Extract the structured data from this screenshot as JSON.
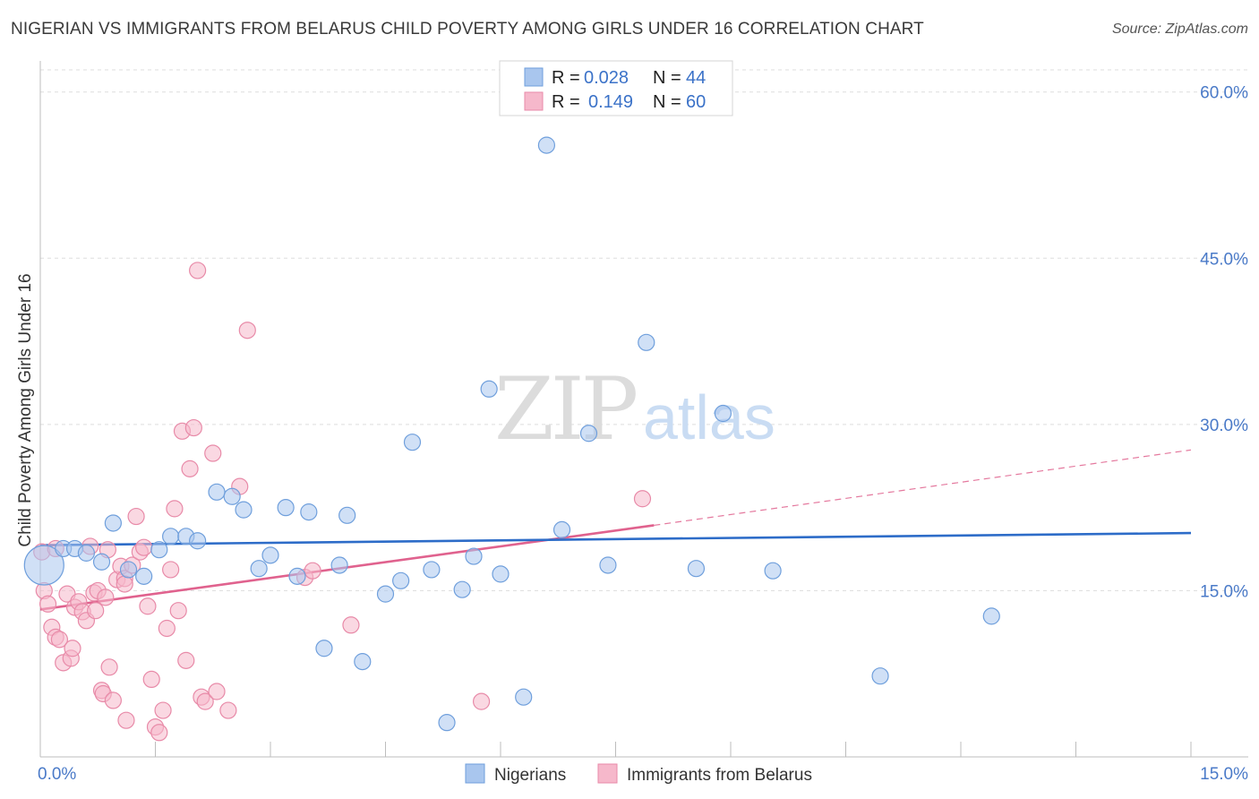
{
  "title": "NIGERIAN VS IMMIGRANTS FROM BELARUS CHILD POVERTY AMONG GIRLS UNDER 16 CORRELATION CHART",
  "source": "Source: ZipAtlas.com",
  "watermark": {
    "part1": "ZIP",
    "part2": "atlas"
  },
  "colors": {
    "blue_fill": "#a9c6ee",
    "blue_stroke": "#6f9fdc",
    "blue_line": "#2d6cc8",
    "pink_fill": "#f6b8cb",
    "pink_stroke": "#e88aa8",
    "pink_line": "#e0628e",
    "grid": "#dddddd",
    "tick_text": "#4a7ac8"
  },
  "top_legend": [
    {
      "r_label": "R = ",
      "r_value": "0.028",
      "n_label": "N = ",
      "n_value": "44"
    },
    {
      "r_label": "R = ",
      "r_value": "0.149",
      "n_label": "N = ",
      "n_value": "60"
    }
  ],
  "bottom_legend": [
    {
      "label": "Nigerians"
    },
    {
      "label": "Immigrants from Belarus"
    }
  ],
  "chart_data": {
    "type": "scatter",
    "title": "NIGERIAN VS IMMIGRANTS FROM BELARUS CHILD POVERTY AMONG GIRLS UNDER 16 CORRELATION CHART",
    "xlabel": "",
    "ylabel": "Child Poverty Among Girls Under 16",
    "xlim": [
      0,
      15
    ],
    "ylim": [
      0,
      62
    ],
    "x_tick_labels": [
      "0.0%",
      "15.0%"
    ],
    "y_ticks": [
      15,
      30,
      45,
      60
    ],
    "y_tick_labels": [
      "15.0%",
      "30.0%",
      "45.0%",
      "60.0%"
    ],
    "grid": true,
    "legend_position": "top-center",
    "series": [
      {
        "name": "Nigerians",
        "R": 0.028,
        "N": 44,
        "trend": {
          "x": [
            0,
            15
          ],
          "y": [
            19.1,
            20.2
          ]
        },
        "points": [
          {
            "x": 0.05,
            "y": 17.3,
            "size": "large"
          },
          {
            "x": 0.3,
            "y": 18.8
          },
          {
            "x": 0.45,
            "y": 18.8
          },
          {
            "x": 0.6,
            "y": 18.4
          },
          {
            "x": 0.8,
            "y": 17.6
          },
          {
            "x": 0.95,
            "y": 21.1
          },
          {
            "x": 1.15,
            "y": 16.9
          },
          {
            "x": 1.35,
            "y": 16.3
          },
          {
            "x": 1.55,
            "y": 18.7
          },
          {
            "x": 1.7,
            "y": 19.9
          },
          {
            "x": 1.9,
            "y": 19.9
          },
          {
            "x": 2.05,
            "y": 19.5
          },
          {
            "x": 2.3,
            "y": 23.9
          },
          {
            "x": 2.5,
            "y": 23.5
          },
          {
            "x": 2.65,
            "y": 22.3
          },
          {
            "x": 2.85,
            "y": 17.0
          },
          {
            "x": 3.0,
            "y": 18.2
          },
          {
            "x": 3.2,
            "y": 22.5
          },
          {
            "x": 3.35,
            "y": 16.3
          },
          {
            "x": 3.5,
            "y": 22.1
          },
          {
            "x": 3.7,
            "y": 9.8
          },
          {
            "x": 3.9,
            "y": 17.3
          },
          {
            "x": 4.0,
            "y": 21.8
          },
          {
            "x": 4.2,
            "y": 8.6
          },
          {
            "x": 4.5,
            "y": 14.7
          },
          {
            "x": 4.7,
            "y": 15.9
          },
          {
            "x": 4.85,
            "y": 28.4
          },
          {
            "x": 5.1,
            "y": 16.9
          },
          {
            "x": 5.3,
            "y": 3.1
          },
          {
            "x": 5.5,
            "y": 15.1
          },
          {
            "x": 5.65,
            "y": 18.1
          },
          {
            "x": 5.85,
            "y": 33.2
          },
          {
            "x": 6.0,
            "y": 16.5
          },
          {
            "x": 6.3,
            "y": 5.4
          },
          {
            "x": 6.6,
            "y": 55.2
          },
          {
            "x": 6.8,
            "y": 20.5
          },
          {
            "x": 7.15,
            "y": 29.2
          },
          {
            "x": 7.4,
            "y": 17.3
          },
          {
            "x": 7.9,
            "y": 37.4
          },
          {
            "x": 8.55,
            "y": 17.0
          },
          {
            "x": 8.9,
            "y": 31.0
          },
          {
            "x": 9.55,
            "y": 16.8
          },
          {
            "x": 10.95,
            "y": 7.3
          },
          {
            "x": 12.4,
            "y": 12.7
          }
        ]
      },
      {
        "name": "Immigrants from Belarus",
        "R": 0.149,
        "N": 60,
        "trend": {
          "x": [
            0,
            8
          ],
          "y": [
            13.3,
            20.9
          ]
        },
        "trend_dashed": {
          "x": [
            8,
            15
          ],
          "y": [
            20.9,
            27.7
          ]
        },
        "points": [
          {
            "x": 0.02,
            "y": 18.5
          },
          {
            "x": 0.05,
            "y": 15.0
          },
          {
            "x": 0.1,
            "y": 13.8
          },
          {
            "x": 0.15,
            "y": 11.7
          },
          {
            "x": 0.2,
            "y": 18.8
          },
          {
            "x": 0.2,
            "y": 10.8
          },
          {
            "x": 0.25,
            "y": 10.6
          },
          {
            "x": 0.3,
            "y": 8.5
          },
          {
            "x": 0.35,
            "y": 14.7
          },
          {
            "x": 0.4,
            "y": 8.9
          },
          {
            "x": 0.42,
            "y": 9.8
          },
          {
            "x": 0.45,
            "y": 13.5
          },
          {
            "x": 0.5,
            "y": 14.0
          },
          {
            "x": 0.55,
            "y": 13.1
          },
          {
            "x": 0.6,
            "y": 12.3
          },
          {
            "x": 0.65,
            "y": 19.0
          },
          {
            "x": 0.7,
            "y": 14.8
          },
          {
            "x": 0.72,
            "y": 13.2
          },
          {
            "x": 0.75,
            "y": 15.0
          },
          {
            "x": 0.8,
            "y": 6.0
          },
          {
            "x": 0.82,
            "y": 5.7
          },
          {
            "x": 0.85,
            "y": 14.4
          },
          {
            "x": 0.88,
            "y": 18.7
          },
          {
            "x": 0.9,
            "y": 8.1
          },
          {
            "x": 0.95,
            "y": 5.1
          },
          {
            "x": 1.0,
            "y": 16.0
          },
          {
            "x": 1.05,
            "y": 17.2
          },
          {
            "x": 1.1,
            "y": 16.1
          },
          {
            "x": 1.1,
            "y": 15.6
          },
          {
            "x": 1.12,
            "y": 3.3
          },
          {
            "x": 1.2,
            "y": 17.3
          },
          {
            "x": 1.25,
            "y": 21.7
          },
          {
            "x": 1.3,
            "y": 18.5
          },
          {
            "x": 1.35,
            "y": 18.9
          },
          {
            "x": 1.4,
            "y": 13.6
          },
          {
            "x": 1.45,
            "y": 7.0
          },
          {
            "x": 1.5,
            "y": 2.7
          },
          {
            "x": 1.55,
            "y": 2.2
          },
          {
            "x": 1.6,
            "y": 4.2
          },
          {
            "x": 1.65,
            "y": 11.6
          },
          {
            "x": 1.7,
            "y": 16.9
          },
          {
            "x": 1.75,
            "y": 22.4
          },
          {
            "x": 1.8,
            "y": 13.2
          },
          {
            "x": 1.85,
            "y": 29.4
          },
          {
            "x": 1.9,
            "y": 8.7
          },
          {
            "x": 1.95,
            "y": 26.0
          },
          {
            "x": 2.0,
            "y": 29.7
          },
          {
            "x": 2.05,
            "y": 43.9
          },
          {
            "x": 2.1,
            "y": 5.4
          },
          {
            "x": 2.15,
            "y": 5.0
          },
          {
            "x": 2.25,
            "y": 27.4
          },
          {
            "x": 2.3,
            "y": 5.9
          },
          {
            "x": 2.45,
            "y": 4.2
          },
          {
            "x": 2.6,
            "y": 24.4
          },
          {
            "x": 2.7,
            "y": 38.5
          },
          {
            "x": 3.45,
            "y": 16.2
          },
          {
            "x": 3.55,
            "y": 16.8
          },
          {
            "x": 4.05,
            "y": 11.9
          },
          {
            "x": 5.75,
            "y": 5.0
          },
          {
            "x": 7.85,
            "y": 23.3
          }
        ]
      }
    ]
  }
}
